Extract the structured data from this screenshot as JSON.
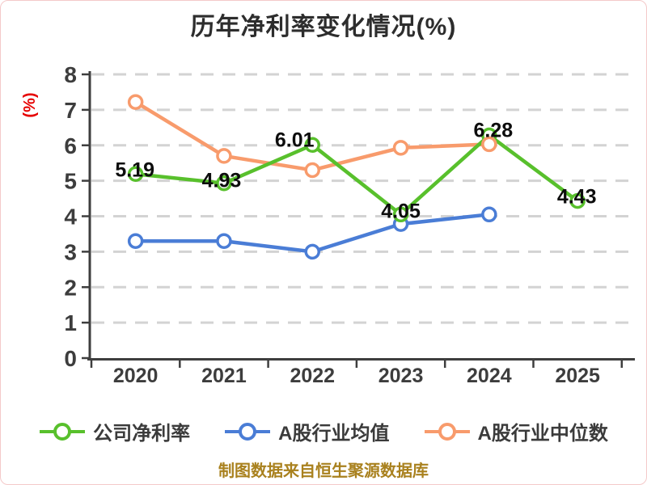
{
  "title": "历年净利率变化情况(%)",
  "y_axis_name": "(%)",
  "footer_note": "制图数据来自恒生聚源数据库",
  "colors": {
    "company_line": "#58C02C",
    "industry_avg_line": "#4A7DD6",
    "industry_median_line": "#F89B6C",
    "grid": "#D3D3D3",
    "axis": "#3E3E3E",
    "tick_label": "#3D3D3D",
    "data_label": "#0D0D0D",
    "y_axis_name": "#E60000",
    "footer": "#A9811E",
    "marker_fill": "#FFFFFF"
  },
  "chart_data": {
    "type": "line",
    "title": "历年净利率变化情况(%)",
    "ylabel": "(%)",
    "categories": [
      "2020",
      "2021",
      "2022",
      "2023",
      "2024",
      "2025"
    ],
    "ylim": [
      0,
      8
    ],
    "yticks": [
      0,
      1,
      2,
      3,
      4,
      5,
      6,
      7,
      8
    ],
    "grid": "horizontal-dashed",
    "legend_position": "bottom",
    "source_note": "制图数据来自恒生聚源数据库",
    "series": [
      {
        "name": "公司净利率",
        "color": "#58C02C",
        "values": [
          5.19,
          4.93,
          6.01,
          4.05,
          6.28,
          4.43
        ],
        "data_labels": [
          "5.19",
          "4.93",
          "6.01",
          "4.05",
          "6.28",
          "4.43"
        ]
      },
      {
        "name": "A股行业均值",
        "color": "#4A7DD6",
        "values": [
          3.3,
          3.3,
          3.0,
          3.78,
          4.05,
          null
        ],
        "data_labels": []
      },
      {
        "name": "A股行业中位数",
        "color": "#F89B6C",
        "values": [
          7.22,
          5.7,
          5.3,
          5.93,
          6.03,
          null
        ],
        "data_labels": []
      }
    ]
  }
}
